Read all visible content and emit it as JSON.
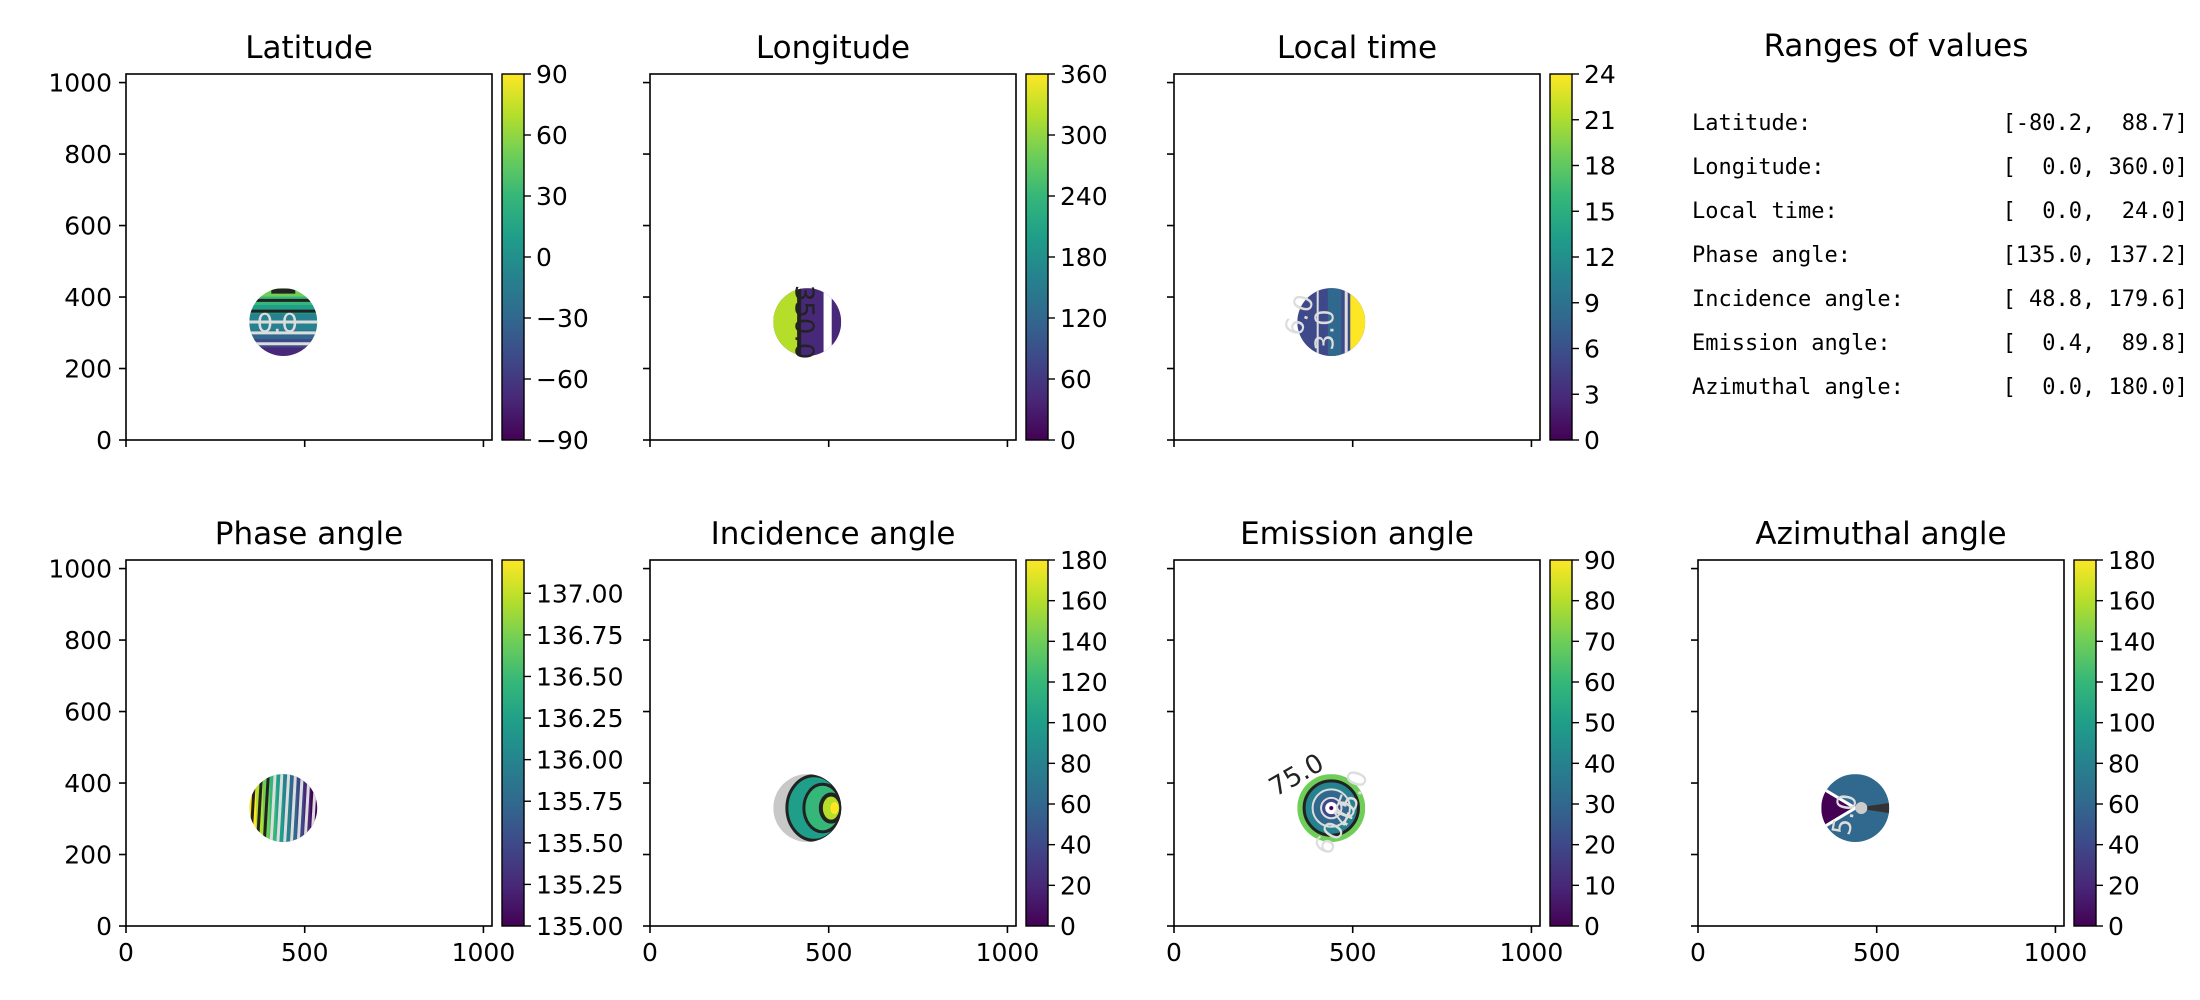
{
  "colors": {
    "viridis": [
      "#440154",
      "#482878",
      "#3e4989",
      "#31688e",
      "#26828e",
      "#1f9e89",
      "#35b779",
      "#6ece58",
      "#b5de2b",
      "#fde725"
    ],
    "axis": "#000000",
    "contour_dark": "#222222",
    "contour_light": "#dddddd",
    "background": "#ffffff"
  },
  "chart_data": [
    {
      "id": "latitude",
      "type": "heatmap",
      "title": "Latitude",
      "xlim": [
        0,
        1024
      ],
      "ylim": [
        0,
        1024
      ],
      "xticks": [
        0,
        500,
        1000
      ],
      "yticks": [
        0,
        200,
        400,
        600,
        800,
        1000
      ],
      "show_xticklabels": false,
      "show_yticklabels": true,
      "disk": {
        "cx": 440,
        "cy": 330,
        "r": 95
      },
      "colorbar": {
        "vmin": -90,
        "vmax": 90,
        "ticks": [
          "90",
          "60",
          "30",
          "0",
          "−30",
          "−60",
          "−90"
        ]
      },
      "contour_labels": [
        "0.0"
      ],
      "pattern": "horizontal"
    },
    {
      "id": "longitude",
      "type": "heatmap",
      "title": "Longitude",
      "xlim": [
        0,
        1024
      ],
      "ylim": [
        0,
        1024
      ],
      "xticks": [
        0,
        500,
        1000
      ],
      "yticks": [
        0,
        200,
        400,
        600,
        800,
        1000
      ],
      "show_xticklabels": false,
      "show_yticklabels": false,
      "disk": {
        "cx": 440,
        "cy": 330,
        "r": 95
      },
      "colorbar": {
        "vmin": 0,
        "vmax": 360,
        "ticks": [
          "360",
          "300",
          "240",
          "180",
          "120",
          "60",
          "0"
        ]
      },
      "contour_labels": [
        "350.0"
      ],
      "pattern": "vertical-split"
    },
    {
      "id": "local-time",
      "type": "heatmap",
      "title": "Local time",
      "xlim": [
        0,
        1024
      ],
      "ylim": [
        0,
        1024
      ],
      "xticks": [
        0,
        500,
        1000
      ],
      "yticks": [
        0,
        200,
        400,
        600,
        800,
        1000
      ],
      "show_xticklabels": false,
      "show_yticklabels": false,
      "disk": {
        "cx": 440,
        "cy": 330,
        "r": 95
      },
      "colorbar": {
        "vmin": 0,
        "vmax": 24,
        "ticks": [
          "24",
          "21",
          "18",
          "15",
          "12",
          "9",
          "6",
          "3",
          "0"
        ]
      },
      "contour_labels": [
        "3.0",
        "6.0"
      ],
      "pattern": "local-time"
    },
    {
      "id": "phase-angle",
      "type": "heatmap",
      "title": "Phase angle",
      "xlim": [
        0,
        1024
      ],
      "ylim": [
        0,
        1024
      ],
      "xticks": [
        0,
        500,
        1000
      ],
      "yticks": [
        0,
        200,
        400,
        600,
        800,
        1000
      ],
      "show_xticklabels": true,
      "show_yticklabels": true,
      "disk": {
        "cx": 440,
        "cy": 330,
        "r": 95
      },
      "colorbar": {
        "vmin": 135.0,
        "vmax": 137.2,
        "ticks": [
          "137.00",
          "136.75",
          "136.50",
          "136.25",
          "136.00",
          "135.75",
          "135.50",
          "135.25",
          "135.00"
        ]
      },
      "contour_labels": [],
      "pattern": "vertical-stripes"
    },
    {
      "id": "incidence-angle",
      "type": "heatmap",
      "title": "Incidence angle",
      "xlim": [
        0,
        1024
      ],
      "ylim": [
        0,
        1024
      ],
      "xticks": [
        0,
        500,
        1000
      ],
      "yticks": [
        0,
        200,
        400,
        600,
        800,
        1000
      ],
      "show_xticklabels": true,
      "show_yticklabels": false,
      "disk": {
        "cx": 440,
        "cy": 330,
        "r": 95
      },
      "colorbar": {
        "vmin": 0,
        "vmax": 180,
        "ticks": [
          "180",
          "160",
          "140",
          "120",
          "100",
          "80",
          "60",
          "40",
          "20",
          "0"
        ]
      },
      "contour_labels": [],
      "pattern": "incidence"
    },
    {
      "id": "emission-angle",
      "type": "heatmap",
      "title": "Emission angle",
      "xlim": [
        0,
        1024
      ],
      "ylim": [
        0,
        1024
      ],
      "xticks": [
        0,
        500,
        1000
      ],
      "yticks": [
        0,
        200,
        400,
        600,
        800,
        1000
      ],
      "show_xticklabels": true,
      "show_yticklabels": false,
      "disk": {
        "cx": 440,
        "cy": 330,
        "r": 95
      },
      "colorbar": {
        "vmin": 0,
        "vmax": 90,
        "ticks": [
          "90",
          "80",
          "70",
          "60",
          "50",
          "40",
          "30",
          "20",
          "10",
          "0"
        ]
      },
      "contour_labels": [
        "75.0",
        "60.0",
        "45.0"
      ],
      "pattern": "emission"
    },
    {
      "id": "azimuthal-angle",
      "type": "heatmap",
      "title": "Azimuthal angle",
      "xlim": [
        0,
        1024
      ],
      "ylim": [
        0,
        1024
      ],
      "xticks": [
        0,
        500,
        1000
      ],
      "yticks": [
        0,
        200,
        400,
        600,
        800,
        1000
      ],
      "show_xticklabels": true,
      "show_yticklabels": false,
      "disk": {
        "cx": 440,
        "cy": 330,
        "r": 95
      },
      "colorbar": {
        "vmin": 0,
        "vmax": 180,
        "ticks": [
          "180",
          "160",
          "140",
          "120",
          "100",
          "80",
          "60",
          "40",
          "20",
          "0"
        ]
      },
      "contour_labels": [
        "5.0"
      ],
      "pattern": "azimuth"
    }
  ],
  "ranges": {
    "title": "Ranges of values",
    "rows": [
      {
        "label": "Latitude:",
        "value": "[-80.2,  88.7]"
      },
      {
        "label": "Longitude:",
        "value": "[  0.0, 360.0]"
      },
      {
        "label": "Local time:",
        "value": "[  0.0,  24.0]"
      },
      {
        "label": "Phase angle:",
        "value": "[135.0, 137.2]"
      },
      {
        "label": "Incidence angle:",
        "value": "[ 48.8, 179.6]"
      },
      {
        "label": "Emission angle:",
        "value": "[  0.4,  89.8]"
      },
      {
        "label": "Azimuthal angle:",
        "value": "[  0.0, 180.0]"
      }
    ]
  }
}
